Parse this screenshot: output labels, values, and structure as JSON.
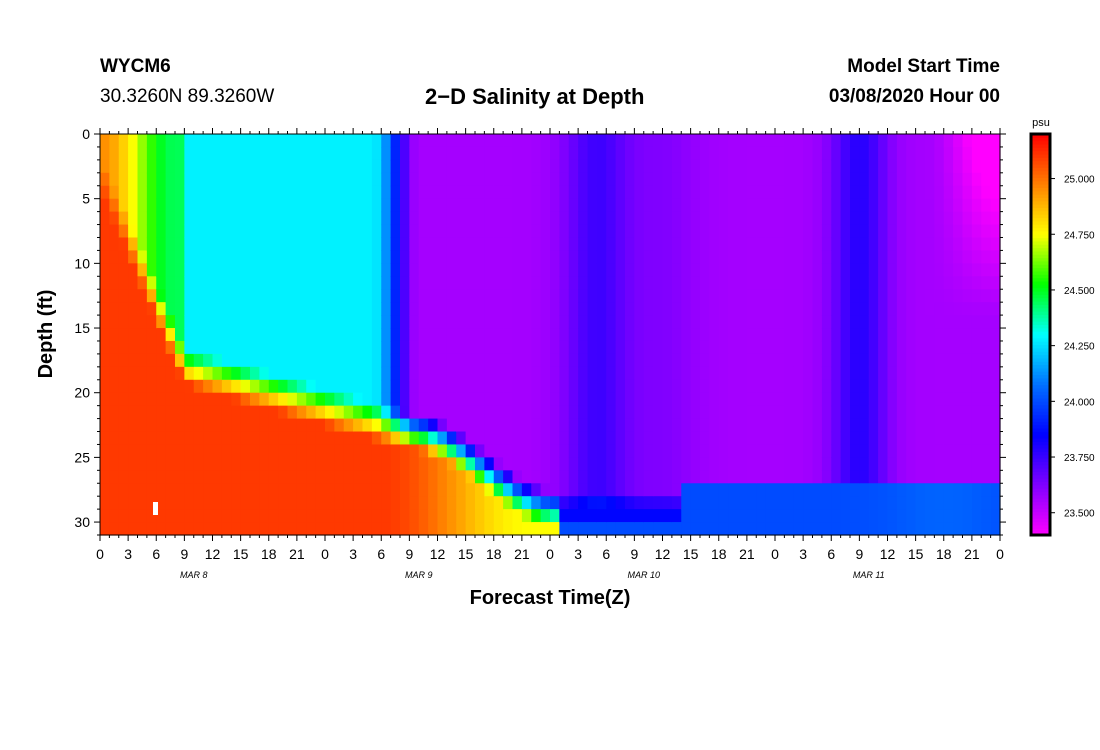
{
  "header": {
    "station": "WYCM6",
    "coordinates": "30.3260N 89.3260W",
    "title": "2−D Salinity at Depth",
    "model_start_label": "Model Start Time",
    "model_start_value": "03/08/2020 Hour 00"
  },
  "chart_data": {
    "type": "heatmap",
    "title": "2−D Salinity at Depth",
    "xlabel": "Forecast Time(Z)",
    "ylabel": "Depth (ft)",
    "x_tick_labels": [
      "0",
      "3",
      "6",
      "9",
      "12",
      "15",
      "18",
      "21",
      "0",
      "3",
      "6",
      "9",
      "12",
      "15",
      "18",
      "21",
      "0",
      "3",
      "6",
      "9",
      "12",
      "15",
      "18",
      "21",
      "0",
      "3",
      "6",
      "9",
      "12",
      "15",
      "18",
      "21",
      "0"
    ],
    "x_range_hours": [
      0,
      96
    ],
    "day_labels": [
      "MAR 8",
      "MAR 9",
      "MAR 10",
      "MAR 11"
    ],
    "y_tick_values": [
      0,
      5,
      10,
      15,
      20,
      25,
      30
    ],
    "y_range_ft": [
      0,
      31
    ],
    "y_inverted": true,
    "colorbar": {
      "unit": "psu",
      "range": [
        23.4,
        25.2
      ],
      "tick_values": [
        23.5,
        23.75,
        24.0,
        24.25,
        24.5,
        24.75,
        25.0
      ],
      "tick_labels": [
        "23.500",
        "23.750",
        "24.000",
        "24.250",
        "24.500",
        "24.750",
        "25.000"
      ],
      "colors": [
        "#ff00ff",
        "#8000ff",
        "#0000ff",
        "#0070ff",
        "#00ffff",
        "#00ff00",
        "#ffff00",
        "#ff8000",
        "#ff0000"
      ]
    },
    "field_description_psu": {
      "bottom_left_max": 25.2,
      "surface_after_hour_30_min": 23.55,
      "green_core_hours_9_to_33": 24.3,
      "cyan_bottom_layer_after_hour_48": 24.0
    }
  }
}
